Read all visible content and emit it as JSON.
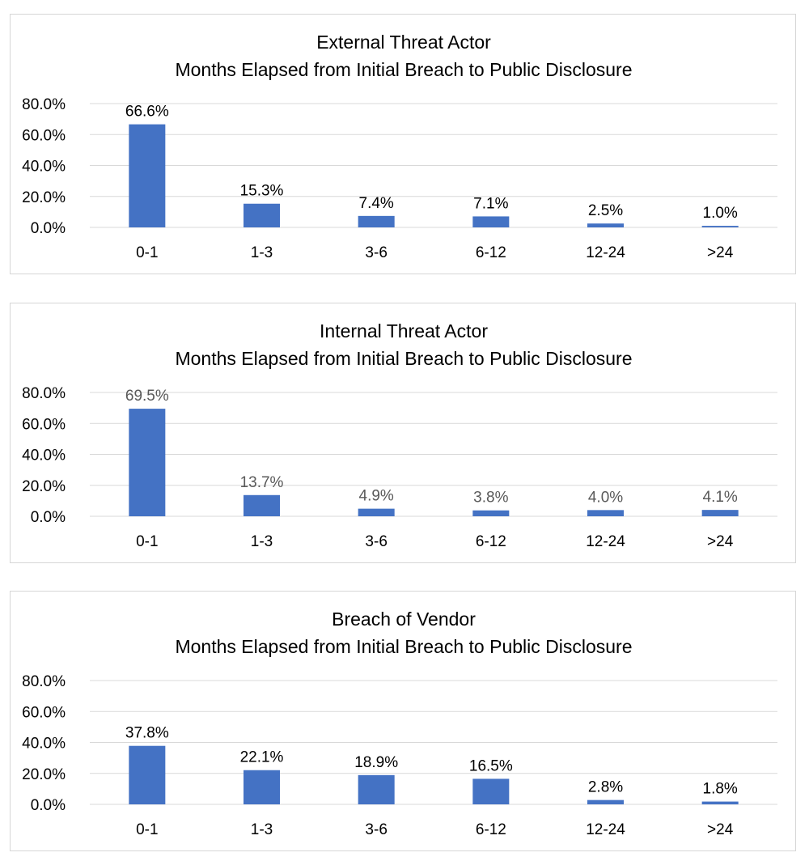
{
  "chart_data": [
    {
      "type": "bar",
      "title": "External Threat Actor",
      "subtitle": "Months Elapsed from Initial Breach to Public Disclosure",
      "categories": [
        "0-1",
        "1-3",
        "3-6",
        "6-12",
        "12-24",
        ">24"
      ],
      "values": [
        66.6,
        15.3,
        7.4,
        7.1,
        2.5,
        1.0
      ],
      "data_labels": [
        "66.6%",
        "15.3%",
        "7.4%",
        "7.1%",
        "2.5%",
        "1.0%"
      ],
      "y_ticks": [
        "0.0%",
        "20.0%",
        "40.0%",
        "60.0%",
        "80.0%"
      ],
      "ylim": [
        0,
        80
      ],
      "grid": true,
      "bar_color": "#4472c4",
      "label_color": "#000000"
    },
    {
      "type": "bar",
      "title": "Internal Threat Actor",
      "subtitle": "Months Elapsed from Initial Breach to Public Disclosure",
      "categories": [
        "0-1",
        "1-3",
        "3-6",
        "6-12",
        "12-24",
        ">24"
      ],
      "values": [
        69.5,
        13.7,
        4.9,
        3.8,
        4.0,
        4.1
      ],
      "data_labels": [
        "69.5%",
        "13.7%",
        "4.9%",
        "3.8%",
        "4.0%",
        "4.1%"
      ],
      "y_ticks": [
        "0.0%",
        "20.0%",
        "40.0%",
        "60.0%",
        "80.0%"
      ],
      "ylim": [
        0,
        80
      ],
      "grid": true,
      "bar_color": "#4472c4",
      "label_color": "#595959"
    },
    {
      "type": "bar",
      "title": "Breach of Vendor",
      "subtitle": "Months Elapsed from Initial Breach to Public Disclosure",
      "categories": [
        "0-1",
        "1-3",
        "3-6",
        "6-12",
        "12-24",
        ">24"
      ],
      "values": [
        37.8,
        22.1,
        18.9,
        16.5,
        2.8,
        1.8
      ],
      "data_labels": [
        "37.8%",
        "22.1%",
        "18.9%",
        "16.5%",
        "2.8%",
        "1.8%"
      ],
      "y_ticks": [
        "0.0%",
        "20.0%",
        "40.0%",
        "60.0%",
        "80.0%"
      ],
      "ylim": [
        0,
        80
      ],
      "grid": true,
      "bar_color": "#4472c4",
      "label_color": "#000000"
    }
  ]
}
